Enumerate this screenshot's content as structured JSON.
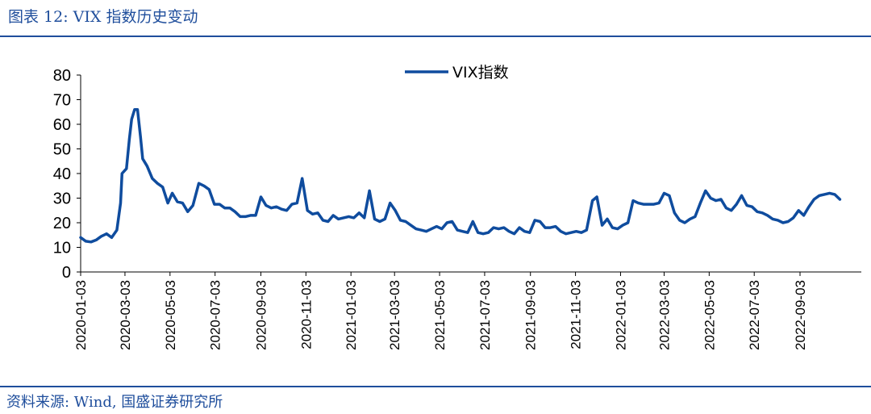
{
  "header": {
    "title": "图表 12:  VIX 指数历史变动"
  },
  "footer": {
    "source": "资料来源:  Wind,  国盛证券研究所"
  },
  "colors": {
    "accent": "#1F4E9C",
    "series": "#0F4C9E"
  },
  "chart_data": {
    "type": "line",
    "title": "",
    "xlabel": "",
    "ylabel": "",
    "ylim": [
      0,
      80
    ],
    "yticks": [
      0,
      10,
      20,
      30,
      40,
      50,
      60,
      70,
      80
    ],
    "xlim": [
      "2020-01-03",
      "2022-11-25"
    ],
    "xticks": [
      "2020-01-03",
      "2020-03-03",
      "2020-05-03",
      "2020-07-03",
      "2020-09-03",
      "2020-11-03",
      "2021-01-03",
      "2021-03-03",
      "2021-05-03",
      "2021-07-03",
      "2021-09-03",
      "2021-11-03",
      "2022-01-03",
      "2022-03-03",
      "2022-05-03",
      "2022-07-03",
      "2022-09-03"
    ],
    "grid": false,
    "legend": "top-center",
    "series": [
      {
        "name": "VIX指数",
        "color": "#0F4C9E",
        "points": [
          [
            "2020-01-03",
            14
          ],
          [
            "2020-01-10",
            12.5
          ],
          [
            "2020-01-17",
            12.2
          ],
          [
            "2020-01-24",
            13
          ],
          [
            "2020-01-31",
            14.5
          ],
          [
            "2020-02-07",
            15.5
          ],
          [
            "2020-02-14",
            14
          ],
          [
            "2020-02-21",
            17
          ],
          [
            "2020-02-26",
            28
          ],
          [
            "2020-02-28",
            40
          ],
          [
            "2020-03-05",
            42
          ],
          [
            "2020-03-09",
            54
          ],
          [
            "2020-03-12",
            62
          ],
          [
            "2020-03-16",
            66
          ],
          [
            "2020-03-20",
            66
          ],
          [
            "2020-03-24",
            55
          ],
          [
            "2020-03-27",
            46
          ],
          [
            "2020-04-02",
            43
          ],
          [
            "2020-04-09",
            38
          ],
          [
            "2020-04-16",
            36
          ],
          [
            "2020-04-23",
            34.5
          ],
          [
            "2020-04-30",
            28
          ],
          [
            "2020-05-06",
            32
          ],
          [
            "2020-05-13",
            28.5
          ],
          [
            "2020-05-20",
            28
          ],
          [
            "2020-05-27",
            24.5
          ],
          [
            "2020-06-03",
            27
          ],
          [
            "2020-06-11",
            36
          ],
          [
            "2020-06-18",
            35
          ],
          [
            "2020-06-25",
            33.5
          ],
          [
            "2020-07-02",
            27.5
          ],
          [
            "2020-07-09",
            27.5
          ],
          [
            "2020-07-16",
            26
          ],
          [
            "2020-07-23",
            26
          ],
          [
            "2020-07-30",
            24.5
          ],
          [
            "2020-08-06",
            22.5
          ],
          [
            "2020-08-13",
            22.5
          ],
          [
            "2020-08-20",
            23
          ],
          [
            "2020-08-27",
            23
          ],
          [
            "2020-09-03",
            30.5
          ],
          [
            "2020-09-10",
            27
          ],
          [
            "2020-09-17",
            26
          ],
          [
            "2020-09-24",
            26.5
          ],
          [
            "2020-10-01",
            25.5
          ],
          [
            "2020-10-08",
            25
          ],
          [
            "2020-10-15",
            27.5
          ],
          [
            "2020-10-22",
            28
          ],
          [
            "2020-10-29",
            38
          ],
          [
            "2020-11-05",
            25
          ],
          [
            "2020-11-12",
            23.5
          ],
          [
            "2020-11-19",
            24
          ],
          [
            "2020-11-26",
            21
          ],
          [
            "2020-12-03",
            20.5
          ],
          [
            "2020-12-10",
            23
          ],
          [
            "2020-12-17",
            21.5
          ],
          [
            "2020-12-24",
            22
          ],
          [
            "2020-12-31",
            22.5
          ],
          [
            "2021-01-07",
            22
          ],
          [
            "2021-01-14",
            24
          ],
          [
            "2021-01-21",
            22
          ],
          [
            "2021-01-28",
            33
          ],
          [
            "2021-02-04",
            21.5
          ],
          [
            "2021-02-11",
            20.5
          ],
          [
            "2021-02-18",
            21.5
          ],
          [
            "2021-02-25",
            28
          ],
          [
            "2021-03-04",
            25
          ],
          [
            "2021-03-11",
            21
          ],
          [
            "2021-03-18",
            20.5
          ],
          [
            "2021-03-25",
            19
          ],
          [
            "2021-04-01",
            17.5
          ],
          [
            "2021-04-08",
            17
          ],
          [
            "2021-04-15",
            16.5
          ],
          [
            "2021-04-22",
            17.5
          ],
          [
            "2021-04-29",
            18.5
          ],
          [
            "2021-05-06",
            17.5
          ],
          [
            "2021-05-13",
            20
          ],
          [
            "2021-05-20",
            20.5
          ],
          [
            "2021-05-27",
            17
          ],
          [
            "2021-06-03",
            16.5
          ],
          [
            "2021-06-10",
            16
          ],
          [
            "2021-06-17",
            20.5
          ],
          [
            "2021-06-24",
            16
          ],
          [
            "2021-07-01",
            15.5
          ],
          [
            "2021-07-08",
            16
          ],
          [
            "2021-07-15",
            18
          ],
          [
            "2021-07-22",
            17.5
          ],
          [
            "2021-07-29",
            18
          ],
          [
            "2021-08-05",
            16.5
          ],
          [
            "2021-08-12",
            15.5
          ],
          [
            "2021-08-19",
            18
          ],
          [
            "2021-08-26",
            16.5
          ],
          [
            "2021-09-02",
            16
          ],
          [
            "2021-09-09",
            21
          ],
          [
            "2021-09-16",
            20.5
          ],
          [
            "2021-09-23",
            18
          ],
          [
            "2021-09-30",
            18
          ],
          [
            "2021-10-07",
            18.5
          ],
          [
            "2021-10-14",
            16.5
          ],
          [
            "2021-10-21",
            15.5
          ],
          [
            "2021-10-28",
            16
          ],
          [
            "2021-11-04",
            16.5
          ],
          [
            "2021-11-11",
            16
          ],
          [
            "2021-11-18",
            17
          ],
          [
            "2021-11-26",
            29
          ],
          [
            "2021-12-02",
            30.5
          ],
          [
            "2021-12-09",
            19
          ],
          [
            "2021-12-16",
            21.5
          ],
          [
            "2021-12-23",
            18
          ],
          [
            "2021-12-30",
            17.5
          ],
          [
            "2022-01-06",
            19
          ],
          [
            "2022-01-13",
            20
          ],
          [
            "2022-01-20",
            29
          ],
          [
            "2022-01-27",
            28
          ],
          [
            "2022-02-03",
            27.5
          ],
          [
            "2022-02-10",
            27.5
          ],
          [
            "2022-02-17",
            27.5
          ],
          [
            "2022-02-24",
            28
          ],
          [
            "2022-03-03",
            32
          ],
          [
            "2022-03-10",
            31
          ],
          [
            "2022-03-17",
            24
          ],
          [
            "2022-03-24",
            21
          ],
          [
            "2022-03-31",
            20
          ],
          [
            "2022-04-07",
            21.5
          ],
          [
            "2022-04-14",
            22.5
          ],
          [
            "2022-04-21",
            28
          ],
          [
            "2022-04-28",
            33
          ],
          [
            "2022-05-05",
            30
          ],
          [
            "2022-05-12",
            29
          ],
          [
            "2022-05-19",
            29.5
          ],
          [
            "2022-05-26",
            26
          ],
          [
            "2022-06-02",
            25
          ],
          [
            "2022-06-09",
            27.5
          ],
          [
            "2022-06-16",
            31
          ],
          [
            "2022-06-23",
            27
          ],
          [
            "2022-06-30",
            26.5
          ],
          [
            "2022-07-07",
            24.5
          ],
          [
            "2022-07-14",
            24
          ],
          [
            "2022-07-21",
            23
          ],
          [
            "2022-07-28",
            21.5
          ],
          [
            "2022-08-04",
            21
          ],
          [
            "2022-08-11",
            20
          ],
          [
            "2022-08-18",
            20.5
          ],
          [
            "2022-08-25",
            22
          ],
          [
            "2022-09-01",
            25
          ],
          [
            "2022-09-08",
            23
          ],
          [
            "2022-09-15",
            26.5
          ],
          [
            "2022-09-22",
            29.5
          ],
          [
            "2022-09-29",
            31
          ],
          [
            "2022-10-06",
            31.5
          ],
          [
            "2022-10-13",
            32
          ],
          [
            "2022-10-20",
            31.5
          ],
          [
            "2022-10-27",
            29.5
          ]
        ]
      }
    ]
  }
}
